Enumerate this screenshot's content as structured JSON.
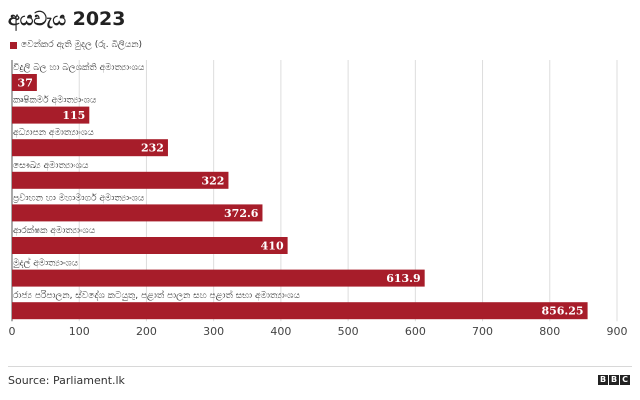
{
  "chart_data": {
    "type": "bar",
    "orientation": "horizontal",
    "title": "අයවැය 2023",
    "legend": [
      {
        "label": "වෙන්කර ඇති මුදල (රු. බිලියන)",
        "color": "#a71d2a"
      }
    ],
    "categories": [
      "විදුලි බල හා බලශක්ති අමාත්‍යාංශය",
      "කෘෂිකර්ම අමාත්‍යාංශය",
      "අධ්‍යාපන අමාත්‍යාංශය",
      "සෞඛ්‍ය අමාත්‍යාංශය",
      "ප්‍රවාහන හා මහාමාර්ග අමාත්‍යාංශය",
      "ආරක්ෂක අමාත්‍යාංශය",
      "මුදල් අමාත්‍යාංශය",
      "රාජ්‍ය පරිපාලන, ස්වදේශ කටයුතු, පළාත් පාලන සහ පළාත් සභා අමාත්‍යාංශය"
    ],
    "values": [
      37,
      115,
      232,
      322,
      372.6,
      410,
      613.9,
      856.25
    ],
    "value_labels": [
      "37",
      "115",
      "232",
      "322",
      "372.6",
      "410",
      "613.9",
      "856.25"
    ],
    "xlim": [
      0,
      900
    ],
    "x_ticks": [
      0,
      100,
      200,
      300,
      400,
      500,
      600,
      700,
      800,
      900
    ],
    "grid": true,
    "bar_color": "#a71d2a"
  },
  "footer": {
    "source": "Source:  Parliament.lk",
    "logo_letters": [
      "B",
      "B",
      "C"
    ]
  }
}
